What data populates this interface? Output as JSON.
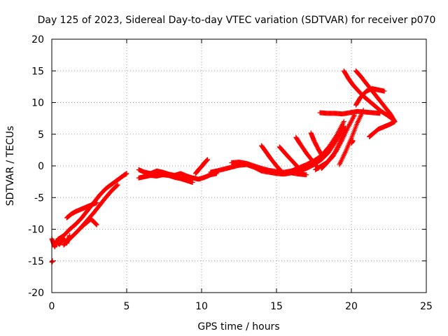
{
  "chart_data": {
    "type": "scatter",
    "title": "Day 125 of 2023, Sidereal Day-to-day VTEC variation (SDTVAR) for receiver p070",
    "xlabel": "GPS time / hours",
    "ylabel": "SDTVAR / TECUs",
    "xlim": [
      0,
      25
    ],
    "ylim": [
      -20,
      20
    ],
    "x_ticks": [
      0,
      5,
      10,
      15,
      20,
      25
    ],
    "y_ticks": [
      -20,
      -15,
      -10,
      -5,
      0,
      5,
      10,
      15,
      20
    ],
    "grid": true,
    "marker": "plus",
    "color": "#ff0000",
    "series": [
      {
        "x": [
          0.0,
          0.2,
          0.3,
          0.5,
          0.8,
          1.0,
          1.2
        ],
        "y": [
          -11.5,
          -12.8,
          -11.8,
          -12.4,
          -11.5,
          -12.2,
          -11.0
        ]
      },
      {
        "x": [
          0.0,
          0.05
        ],
        "y": [
          -15.2,
          -15.0
        ]
      },
      {
        "x": [
          0.4,
          0.8,
          1.2,
          1.6,
          2.0,
          2.4,
          2.8,
          3.2,
          3.6,
          4.0,
          4.4,
          4.8,
          5.0
        ],
        "y": [
          -11.6,
          -11.0,
          -10.0,
          -9.2,
          -8.2,
          -7.0,
          -5.8,
          -4.6,
          -3.6,
          -2.9,
          -2.2,
          -1.5,
          -1.2
        ]
      },
      {
        "x": [
          0.8,
          1.2,
          1.6,
          2.0,
          2.4,
          2.8,
          3.2,
          3.6,
          4.0,
          4.4
        ],
        "y": [
          -12.5,
          -11.5,
          -10.6,
          -9.6,
          -8.5,
          -7.4,
          -6.2,
          -5.0,
          -3.9,
          -3.0
        ]
      },
      {
        "x": [
          1.0,
          1.3,
          1.6,
          2.0,
          2.4,
          2.8,
          3.0
        ],
        "y": [
          -8.2,
          -7.6,
          -7.2,
          -6.8,
          -6.4,
          -6.0,
          -5.8
        ]
      },
      {
        "x": [
          2.0,
          2.3,
          2.6,
          2.8,
          3.0
        ],
        "y": [
          -9.6,
          -9.0,
          -8.4,
          -8.8,
          -9.3
        ]
      },
      {
        "x": [
          5.8,
          6.2,
          6.6,
          7.0,
          7.4,
          7.8,
          8.2,
          8.6,
          9.0,
          9.4,
          9.8,
          10.2,
          10.6,
          11.0
        ],
        "y": [
          -0.6,
          -1.0,
          -1.2,
          -0.8,
          -1.0,
          -1.3,
          -1.5,
          -1.2,
          -1.6,
          -1.9,
          -2.1,
          -1.8,
          -1.4,
          -1.2
        ]
      },
      {
        "x": [
          5.8,
          6.2,
          6.6,
          7.0,
          7.4,
          7.8,
          8.2,
          8.6,
          9.0,
          9.4
        ],
        "y": [
          -1.9,
          -1.7,
          -1.5,
          -1.6,
          -1.4,
          -1.5,
          -1.8,
          -2.0,
          -2.3,
          -2.6
        ]
      },
      {
        "x": [
          9.6,
          9.8,
          10.0,
          10.2,
          10.4
        ],
        "y": [
          -1.2,
          -0.6,
          -0.1,
          0.5,
          1.0
        ]
      },
      {
        "x": [
          10.6,
          11.0,
          11.5,
          12.0,
          12.5,
          13.0,
          13.5,
          14.0,
          14.5,
          15.0,
          15.5,
          16.0,
          16.5,
          17.0
        ],
        "y": [
          -1.0,
          -0.8,
          -0.5,
          -0.2,
          0.1,
          0.2,
          -0.2,
          -0.8,
          -1.0,
          -1.2,
          -1.3,
          -1.1,
          -1.3,
          -1.4
        ]
      },
      {
        "x": [
          12.0,
          12.5,
          13.0,
          13.5,
          14.0,
          14.5,
          15.0,
          15.5,
          16.0,
          16.5
        ],
        "y": [
          0.5,
          0.6,
          0.4,
          0.0,
          -0.4,
          -0.7,
          -0.9,
          -1.0,
          -0.8,
          -0.5
        ]
      },
      {
        "x": [
          14.0,
          14.3,
          14.6,
          15.0,
          15.3
        ],
        "y": [
          3.2,
          2.2,
          1.2,
          0.0,
          -0.8
        ]
      },
      {
        "x": [
          15.2,
          15.5,
          15.8,
          16.2,
          16.5
        ],
        "y": [
          3.0,
          2.2,
          1.4,
          0.4,
          -0.4
        ]
      },
      {
        "x": [
          16.3,
          16.6,
          17.0,
          17.4,
          17.8
        ],
        "y": [
          4.5,
          3.4,
          2.0,
          0.8,
          -0.4
        ]
      },
      {
        "x": [
          17.3,
          17.5,
          17.8,
          18.1
        ],
        "y": [
          5.2,
          4.0,
          2.6,
          1.4
        ]
      },
      {
        "x": [
          15.6,
          16.0,
          16.5,
          17.0,
          17.5,
          18.0,
          18.5,
          19.0,
          19.5
        ],
        "y": [
          -1.2,
          -0.8,
          -0.3,
          0.2,
          0.8,
          1.6,
          3.0,
          4.8,
          7.0
        ]
      },
      {
        "x": [
          16.5,
          17.0,
          17.5,
          18.0,
          18.5,
          19.0,
          19.5
        ],
        "y": [
          -0.8,
          -0.4,
          0.2,
          1.0,
          2.2,
          4.0,
          6.2
        ]
      },
      {
        "x": [
          17.6,
          18.0,
          18.4,
          18.8,
          19.2,
          19.6
        ],
        "y": [
          -0.6,
          0.0,
          0.6,
          1.6,
          3.6,
          6.0
        ]
      },
      {
        "x": [
          18.0,
          18.3,
          18.6,
          19.0,
          19.4,
          19.8,
          20.2
        ],
        "y": [
          -0.4,
          0.3,
          1.2,
          2.4,
          4.2,
          6.2,
          8.0
        ]
      },
      {
        "x": [
          19.2,
          19.6,
          20.0,
          20.4,
          20.8
        ],
        "y": [
          0.2,
          2.2,
          4.4,
          6.8,
          8.8
        ]
      },
      {
        "x": [
          17.9,
          18.4,
          18.9,
          19.4,
          19.9,
          20.4,
          20.9,
          21.4,
          21.9
        ],
        "y": [
          8.4,
          8.3,
          8.3,
          8.2,
          8.4,
          8.6,
          8.5,
          8.4,
          8.3
        ]
      },
      {
        "x": [
          19.5,
          19.8,
          20.1,
          20.4,
          20.8,
          21.2,
          21.6,
          22.0,
          22.4,
          22.8
        ],
        "y": [
          15.0,
          13.8,
          12.8,
          12.0,
          11.0,
          10.2,
          9.4,
          8.6,
          8.0,
          7.3
        ]
      },
      {
        "x": [
          20.3,
          20.6,
          21.0,
          21.4,
          21.8,
          22.2,
          22.6,
          22.9
        ],
        "y": [
          15.0,
          14.2,
          13.0,
          11.8,
          10.6,
          9.4,
          8.2,
          7.0
        ]
      },
      {
        "x": [
          20.3,
          20.6,
          21.0,
          21.4,
          21.8,
          22.2
        ],
        "y": [
          9.6,
          10.8,
          11.8,
          12.2,
          12.0,
          11.8
        ]
      },
      {
        "x": [
          22.9,
          22.6,
          22.2,
          21.8,
          21.4,
          21.2
        ],
        "y": [
          7.0,
          6.6,
          6.2,
          5.8,
          5.0,
          4.6
        ]
      },
      {
        "x": [
          20.0,
          20.1
        ],
        "y": [
          3.6,
          4.0
        ]
      }
    ]
  }
}
